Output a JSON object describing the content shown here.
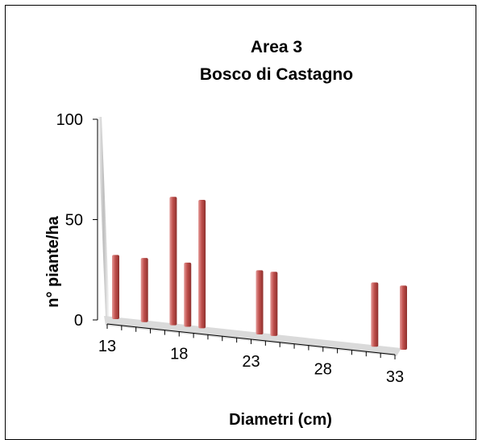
{
  "chart_data": {
    "type": "bar",
    "title": [
      "Area 3",
      "Bosco di Castagno"
    ],
    "xlabel": "Diametri (cm)",
    "ylabel": "n° piante/ha",
    "ylim": [
      0,
      100
    ],
    "yticks": [
      0,
      50,
      100
    ],
    "x": [
      13,
      14,
      15,
      16,
      17,
      18,
      19,
      20,
      21,
      22,
      23,
      24,
      25,
      26,
      27,
      28,
      29,
      30,
      31,
      32,
      33
    ],
    "xtick_labels": [
      "13",
      "18",
      "23",
      "28",
      "33"
    ],
    "values": [
      32,
      0,
      32,
      0,
      64,
      32,
      64,
      0,
      0,
      0,
      32,
      32,
      0,
      0,
      0,
      0,
      0,
      0,
      32,
      0,
      32
    ],
    "bar_color": "#c0504d",
    "grid": false,
    "legend": "none"
  }
}
